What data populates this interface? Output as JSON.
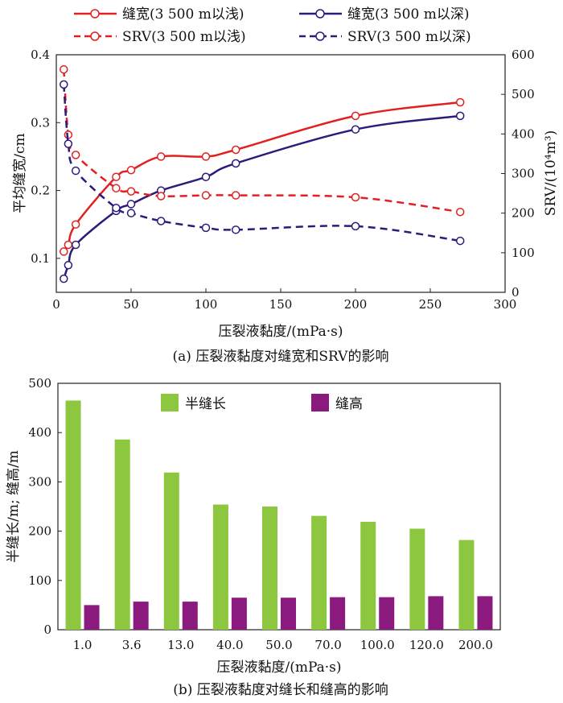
{
  "colors": {
    "red": "#e32020",
    "navy": "#2e1a7a",
    "green": "#8dc63f",
    "purple": "#8b1a7f"
  },
  "chart_data": [
    {
      "type": "line",
      "caption": "(a) 压裂液黏度对缝宽和SRV的影响",
      "xlabel": "压裂液黏度/(mPa·s)",
      "ylabel_left": "平均缝宽/cm",
      "ylabel_right": "SRV/(10⁴m³)",
      "xlim": [
        0,
        300
      ],
      "ylim_left": [
        0.05,
        0.4
      ],
      "ylim_right": [
        0,
        600
      ],
      "x_ticks": [
        "0",
        "50",
        "100",
        "150",
        "200",
        "250",
        "300"
      ],
      "y_left_ticks": [
        "0.1",
        "0.2",
        "0.3",
        "0.4"
      ],
      "y_right_ticks": [
        "0",
        "100",
        "200",
        "300",
        "400",
        "500",
        "600"
      ],
      "series": [
        {
          "name": "缝宽(3 500 m以浅)",
          "axis": "left",
          "style": "solid",
          "color": "#e32020",
          "x": [
            5,
            8,
            13,
            40,
            50,
            70,
            100,
            120,
            200,
            270
          ],
          "y": [
            0.11,
            0.12,
            0.15,
            0.22,
            0.23,
            0.25,
            0.25,
            0.26,
            0.31,
            0.33
          ]
        },
        {
          "name": "缝宽(3 500 m以深)",
          "axis": "left",
          "style": "solid",
          "color": "#2e1a7a",
          "x": [
            5,
            8,
            13,
            40,
            50,
            70,
            100,
            120,
            200,
            270
          ],
          "y": [
            0.07,
            0.09,
            0.12,
            0.17,
            0.18,
            0.2,
            0.22,
            0.24,
            0.29,
            0.31
          ]
        },
        {
          "name": "SRV(3 500 m以浅)",
          "axis": "right",
          "style": "dashed",
          "color": "#e32020",
          "x": [
            5,
            8,
            13,
            40,
            50,
            70,
            100,
            120,
            200,
            270
          ],
          "y": [
            563,
            398,
            347,
            263,
            255,
            243,
            245,
            245,
            240,
            203
          ]
        },
        {
          "name": "SRV(3 500 m以深)",
          "axis": "right",
          "style": "dashed",
          "color": "#2e1a7a",
          "x": [
            5,
            8,
            13,
            40,
            50,
            70,
            100,
            120,
            200,
            270
          ],
          "y": [
            525,
            375,
            307,
            213,
            200,
            180,
            163,
            158,
            167,
            130
          ]
        }
      ]
    },
    {
      "type": "bar",
      "caption": "(b) 压裂液黏度对缝长和缝高的影响",
      "xlabel": "压裂液黏度/(mPa·s)",
      "ylabel": "半缝长/m; 缝高/m",
      "ylim": [
        0,
        500
      ],
      "y_ticks": [
        "0",
        "100",
        "200",
        "300",
        "400",
        "500"
      ],
      "categories": [
        "1.0",
        "3.6",
        "13.0",
        "40.0",
        "50.0",
        "70.0",
        "100.0",
        "120.0",
        "200.0"
      ],
      "series": [
        {
          "name": "半缝长",
          "color": "#8dc63f",
          "values": [
            465,
            386,
            319,
            254,
            250,
            231,
            219,
            205,
            182
          ]
        },
        {
          "name": "缝高",
          "color": "#8b1a7f",
          "values": [
            50,
            57,
            57,
            65,
            65,
            66,
            66,
            68,
            68
          ]
        }
      ]
    }
  ]
}
